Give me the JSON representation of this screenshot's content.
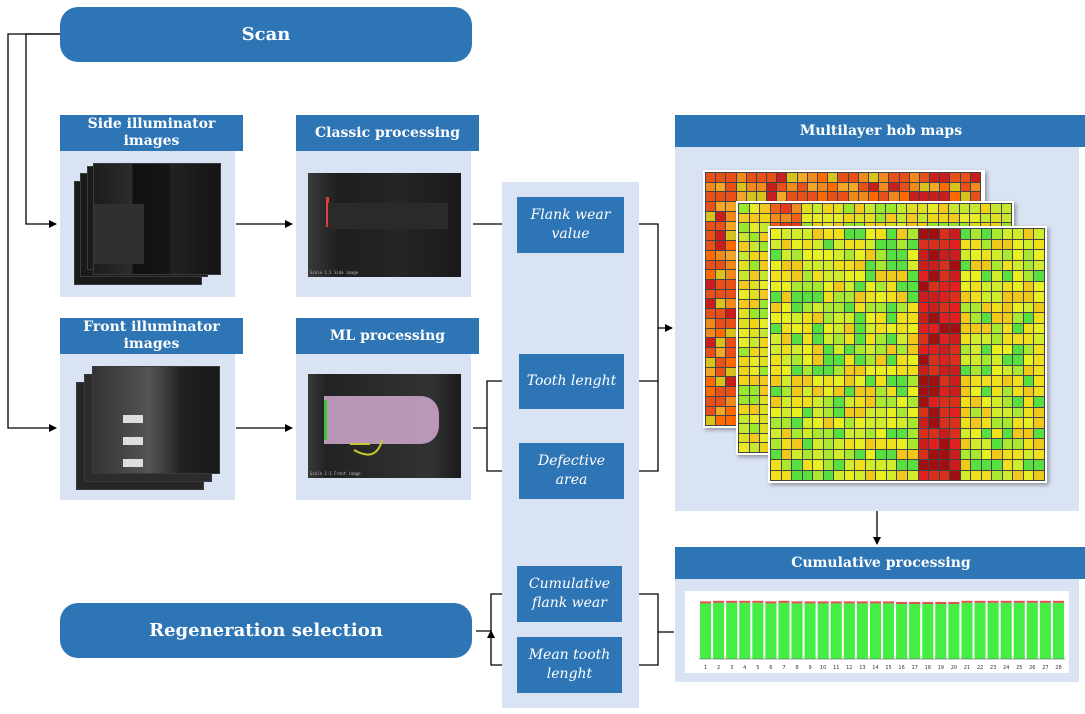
{
  "scan": {
    "label": "Scan"
  },
  "side_images": {
    "header": "Side illuminator images"
  },
  "front_images": {
    "header": "Front illuminator images"
  },
  "classic": {
    "header": "Classic processing"
  },
  "ml": {
    "header": "ML processing"
  },
  "params": {
    "flank_wear": "Flank wear value",
    "tooth_length": "Tooth lenght",
    "defective_area": "Defective area",
    "cumulative_flank_wear": "Cumulative flank wear",
    "mean_tooth_length": "Mean tooth lenght"
  },
  "hob_maps": {
    "header": "Multilayer hob maps"
  },
  "cumulative": {
    "header": "Cumulative processing"
  },
  "regeneration": {
    "label": "Regeneration selection"
  },
  "colors": {
    "primary_blue": "#2e75b6",
    "panel_bg": "#dae3f3",
    "bar_green": "#44ee44",
    "bar_top_red": "#e05050"
  },
  "chart_data": {
    "type": "bar",
    "categories": [
      "1",
      "2",
      "3",
      "4",
      "5",
      "6",
      "7",
      "8",
      "9",
      "10",
      "11",
      "12",
      "13",
      "14",
      "15",
      "16",
      "17",
      "18",
      "19",
      "20",
      "21",
      "22",
      "23",
      "24",
      "25",
      "26",
      "27",
      "28"
    ],
    "series": [
      {
        "values": [
          96,
          97,
          97,
          97,
          97,
          96,
          97,
          96,
          96,
          96,
          96,
          96,
          96,
          96,
          96,
          95,
          95,
          95,
          95,
          95,
          97,
          97,
          97,
          97,
          97,
          97,
          97,
          97
        ]
      }
    ],
    "ylim": [
      0,
      100
    ]
  }
}
